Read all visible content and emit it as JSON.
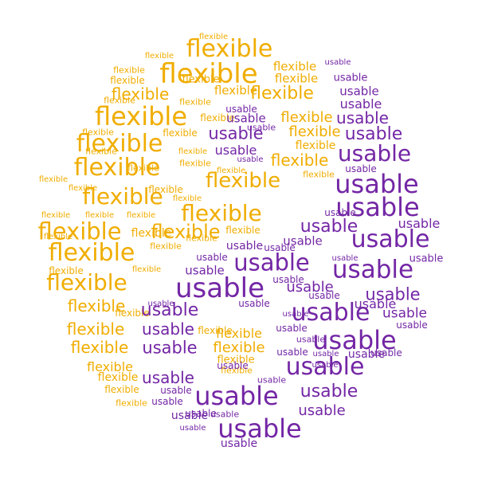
{
  "colors": {
    "flexible": "#f0ad00",
    "usable": "#7326a5"
  },
  "words": [
    {
      "t": "flexible",
      "k": "flexible"
    },
    {
      "t": "flexible",
      "k": "flexible"
    },
    {
      "t": "flexible",
      "k": "flexible"
    },
    {
      "t": "flexible",
      "k": "flexible"
    },
    {
      "t": "flexible",
      "k": "flexible"
    },
    {
      "t": "flexible",
      "k": "flexible"
    },
    {
      "t": "flexible",
      "k": "flexible"
    },
    {
      "t": "flexible",
      "k": "flexible"
    },
    {
      "t": "flexible",
      "k": "flexible"
    },
    {
      "t": "flexible",
      "k": "flexible"
    },
    {
      "t": "flexible",
      "k": "flexible"
    },
    {
      "t": "flexible",
      "k": "flexible"
    },
    {
      "t": "flexible",
      "k": "flexible"
    },
    {
      "t": "flexible",
      "k": "flexible"
    },
    {
      "t": "flexible",
      "k": "flexible"
    },
    {
      "t": "flexible",
      "k": "flexible"
    },
    {
      "t": "flexible",
      "k": "flexible"
    },
    {
      "t": "flexible",
      "k": "flexible"
    },
    {
      "t": "flexible",
      "k": "flexible"
    },
    {
      "t": "flexible",
      "k": "flexible"
    },
    {
      "t": "flexible",
      "k": "flexible"
    },
    {
      "t": "flexible",
      "k": "flexible"
    },
    {
      "t": "flexible",
      "k": "flexible"
    },
    {
      "t": "flexible",
      "k": "flexible"
    },
    {
      "t": "flexible",
      "k": "flexible"
    },
    {
      "t": "flexible",
      "k": "flexible"
    },
    {
      "t": "flexible",
      "k": "flexible"
    },
    {
      "t": "flexible",
      "k": "flexible"
    },
    {
      "t": "flexible",
      "k": "flexible"
    },
    {
      "t": "flexible",
      "k": "flexible"
    },
    {
      "t": "flexible",
      "k": "flexible"
    },
    {
      "t": "flexible",
      "k": "flexible"
    },
    {
      "t": "flexible",
      "k": "flexible"
    },
    {
      "t": "flexible",
      "k": "flexible"
    },
    {
      "t": "flexible",
      "k": "flexible"
    },
    {
      "t": "flexible",
      "k": "flexible"
    },
    {
      "t": "flexible",
      "k": "flexible"
    },
    {
      "t": "flexible",
      "k": "flexible"
    },
    {
      "t": "flexible",
      "k": "flexible"
    },
    {
      "t": "flexible",
      "k": "flexible"
    },
    {
      "t": "flexible",
      "k": "flexible"
    },
    {
      "t": "flexible",
      "k": "flexible"
    },
    {
      "t": "flexible",
      "k": "flexible"
    },
    {
      "t": "flexible",
      "k": "flexible"
    },
    {
      "t": "flexible",
      "k": "flexible"
    },
    {
      "t": "flexible",
      "k": "flexible"
    },
    {
      "t": "flexible",
      "k": "flexible"
    },
    {
      "t": "flexible",
      "k": "flexible"
    },
    {
      "t": "flexible",
      "k": "flexible"
    },
    {
      "t": "flexible",
      "k": "flexible"
    },
    {
      "t": "flexible",
      "k": "flexible"
    },
    {
      "t": "flexible",
      "k": "flexible"
    },
    {
      "t": "flexible",
      "k": "flexible"
    },
    {
      "t": "flexible",
      "k": "flexible"
    },
    {
      "t": "flexible",
      "k": "flexible"
    },
    {
      "t": "flexible",
      "k": "flexible"
    },
    {
      "t": "flexible",
      "k": "flexible"
    },
    {
      "t": "flexible",
      "k": "flexible"
    },
    {
      "t": "flexible",
      "k": "flexible"
    },
    {
      "t": "flexible",
      "k": "flexible"
    },
    {
      "t": "flexible",
      "k": "flexible"
    },
    {
      "t": "flexible",
      "k": "flexible"
    },
    {
      "t": "flexible",
      "k": "flexible"
    },
    {
      "t": "flexible",
      "k": "flexible"
    },
    {
      "t": "usable",
      "k": "usable"
    },
    {
      "t": "usable",
      "k": "usable"
    },
    {
      "t": "usable",
      "k": "usable"
    },
    {
      "t": "usable",
      "k": "usable"
    },
    {
      "t": "usable",
      "k": "usable"
    },
    {
      "t": "usable",
      "k": "usable"
    },
    {
      "t": "usable",
      "k": "usable"
    },
    {
      "t": "usable",
      "k": "usable"
    },
    {
      "t": "usable",
      "k": "usable"
    },
    {
      "t": "usable",
      "k": "usable"
    },
    {
      "t": "usable",
      "k": "usable"
    },
    {
      "t": "usable",
      "k": "usable"
    },
    {
      "t": "usable",
      "k": "usable"
    },
    {
      "t": "usable",
      "k": "usable"
    },
    {
      "t": "usable",
      "k": "usable"
    },
    {
      "t": "usable",
      "k": "usable"
    },
    {
      "t": "usable",
      "k": "usable"
    },
    {
      "t": "usable",
      "k": "usable"
    },
    {
      "t": "usable",
      "k": "usable"
    },
    {
      "t": "usable",
      "k": "usable"
    },
    {
      "t": "usable",
      "k": "usable"
    },
    {
      "t": "usable",
      "k": "usable"
    },
    {
      "t": "usable",
      "k": "usable"
    },
    {
      "t": "usable",
      "k": "usable"
    },
    {
      "t": "usable",
      "k": "usable"
    },
    {
      "t": "usable",
      "k": "usable"
    },
    {
      "t": "usable",
      "k": "usable"
    },
    {
      "t": "usable",
      "k": "usable"
    },
    {
      "t": "usable",
      "k": "usable"
    },
    {
      "t": "usable",
      "k": "usable"
    },
    {
      "t": "usable",
      "k": "usable"
    },
    {
      "t": "usable",
      "k": "usable"
    },
    {
      "t": "usable",
      "k": "usable"
    },
    {
      "t": "usable",
      "k": "usable"
    },
    {
      "t": "usable",
      "k": "usable"
    },
    {
      "t": "usable",
      "k": "usable"
    },
    {
      "t": "usable",
      "k": "usable"
    },
    {
      "t": "usable",
      "k": "usable"
    },
    {
      "t": "usable",
      "k": "usable"
    },
    {
      "t": "usable",
      "k": "usable"
    },
    {
      "t": "usable",
      "k": "usable"
    },
    {
      "t": "usable",
      "k": "usable"
    },
    {
      "t": "usable",
      "k": "usable"
    },
    {
      "t": "usable",
      "k": "usable"
    },
    {
      "t": "usable",
      "k": "usable"
    },
    {
      "t": "usable",
      "k": "usable"
    },
    {
      "t": "usable",
      "k": "usable"
    },
    {
      "t": "usable",
      "k": "usable"
    },
    {
      "t": "usable",
      "k": "usable"
    },
    {
      "t": "usable",
      "k": "usable"
    },
    {
      "t": "usable",
      "k": "usable"
    },
    {
      "t": "usable",
      "k": "usable"
    },
    {
      "t": "usable",
      "k": "usable"
    },
    {
      "t": "usable",
      "k": "usable"
    },
    {
      "t": "usable",
      "k": "usable"
    },
    {
      "t": "usable",
      "k": "usable"
    },
    {
      "t": "usable",
      "k": "usable"
    },
    {
      "t": "usable",
      "k": "usable"
    },
    {
      "t": "usable",
      "k": "usable"
    },
    {
      "t": "usable",
      "k": "usable"
    },
    {
      "t": "usable",
      "k": "usable"
    },
    {
      "t": "usable",
      "k": "usable"
    },
    {
      "t": "usable",
      "k": "usable"
    },
    {
      "t": "usable",
      "k": "usable"
    },
    {
      "t": "usable",
      "k": "usable"
    },
    {
      "t": "usable",
      "k": "usable"
    },
    {
      "t": "usable",
      "k": "usable"
    },
    {
      "t": "usable",
      "k": "usable"
    },
    {
      "t": "usable",
      "k": "usable"
    },
    {
      "t": "usable",
      "k": "usable"
    },
    {
      "t": "usable",
      "k": "usable"
    },
    {
      "t": "usable",
      "k": "usable"
    },
    {
      "t": "usable",
      "k": "usable"
    },
    {
      "t": "usable",
      "k": "usable"
    },
    {
      "t": "usable",
      "k": "usable"
    },
    {
      "t": "usable",
      "k": "usable"
    },
    {
      "t": "usable",
      "k": "usable"
    },
    {
      "t": "usable",
      "k": "usable"
    },
    {
      "t": "usable",
      "k": "usable"
    },
    {
      "t": "usable",
      "k": "usable"
    },
    {
      "t": "usable",
      "k": "usable"
    },
    {
      "t": "usable",
      "k": "usable"
    },
    {
      "t": "usable",
      "k": "usable"
    },
    {
      "t": "usable",
      "k": "usable"
    },
    {
      "t": "usable",
      "k": "usable"
    }
  ]
}
